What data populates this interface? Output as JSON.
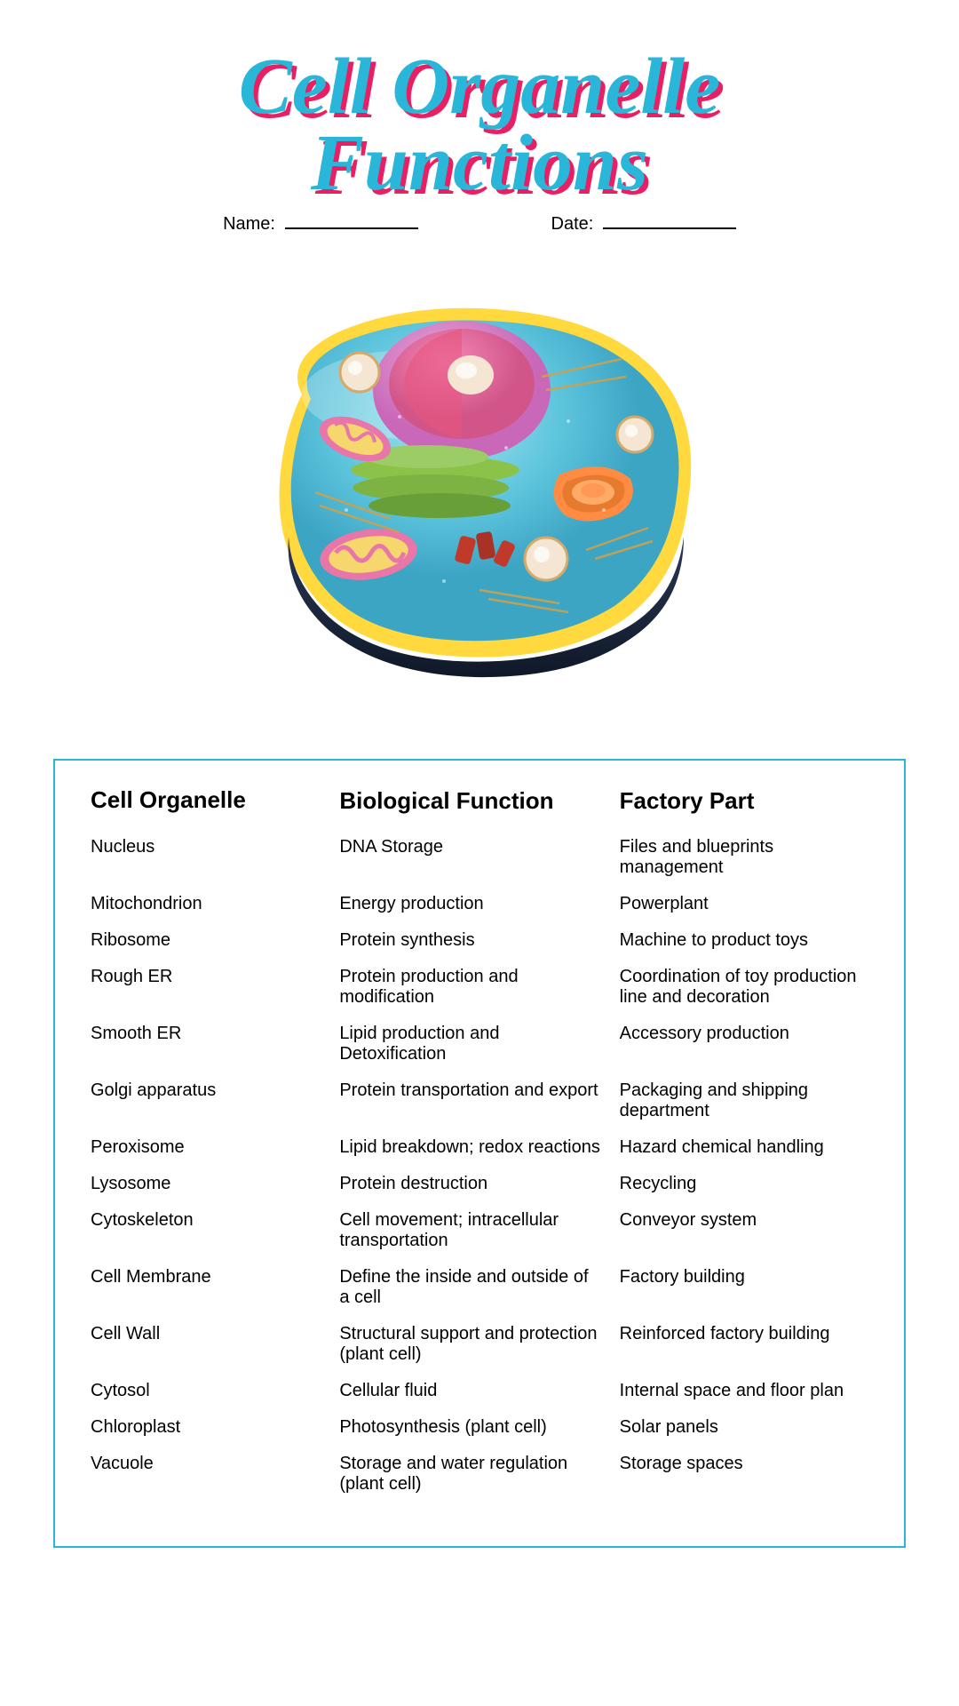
{
  "title_line1": "Cell Organelle",
  "title_line2": "Functions",
  "title_color": "#29b6d8",
  "title_shadow_color": "#e91e63",
  "border_color": "#29b6d8",
  "name_label": "Name:",
  "date_label": "Date:",
  "cell_colors": {
    "outline": "#ffd93d",
    "cytoplasm_top": "#7dd3e8",
    "cytoplasm_mid": "#4db8d8",
    "base": "#1a2845",
    "nucleus_outer": "#d876c8",
    "nucleus_inner": "#e8557f",
    "nucleolus": "#f5e6d3",
    "er_green": "#8bc34a",
    "er_green_dark": "#689f38",
    "golgi": "#ff8c42",
    "golgi_dark": "#e67a2e",
    "mito_pink": "#e876a8",
    "mito_inner": "#f5d76e",
    "ribosome_red": "#c0392b",
    "vesicle": "#f5e6d3"
  },
  "table": {
    "headers": {
      "col1": "Cell Organelle",
      "col2": "Biological Function",
      "col3": "Factory Part"
    },
    "rows": [
      {
        "organelle": "Nucleus",
        "function": "DNA Storage",
        "factory": "Files and blueprints management"
      },
      {
        "organelle": "Mitochondrion",
        "function": "Energy production",
        "factory": "Powerplant"
      },
      {
        "organelle": "Ribosome",
        "function": "Protein synthesis",
        "factory": "Machine to product toys"
      },
      {
        "organelle": "Rough ER",
        "function": "Protein production and modification",
        "factory": "Coordination of toy production line and decoration"
      },
      {
        "organelle": "Smooth ER",
        "function": "Lipid production and Detoxification",
        "factory": "Accessory production"
      },
      {
        "organelle": "Golgi apparatus",
        "function": "Protein transportation and export",
        "factory": "Packaging and shipping department"
      },
      {
        "organelle": "Peroxisome",
        "function": "Lipid breakdown; redox reactions",
        "factory": "Hazard chemical handling"
      },
      {
        "organelle": "Lysosome",
        "function": "Protein destruction",
        "factory": "Recycling"
      },
      {
        "organelle": "Cytoskeleton",
        "function": "Cell movement; intracellular transportation",
        "factory": "Conveyor system"
      },
      {
        "organelle": "Cell Membrane",
        "function": "Define the inside and outside of a cell",
        "factory": "Factory building"
      },
      {
        "organelle": "Cell Wall",
        "function": "Structural support and protection (plant cell)",
        "factory": "Reinforced factory building"
      },
      {
        "organelle": "Cytosol",
        "function": "Cellular fluid",
        "factory": "Internal space and floor plan"
      },
      {
        "organelle": "Chloroplast",
        "function": "Photosynthesis (plant cell)",
        "factory": "Solar panels"
      },
      {
        "organelle": "Vacuole",
        "function": "Storage and water regulation (plant cell)",
        "factory": "Storage spaces"
      }
    ]
  }
}
